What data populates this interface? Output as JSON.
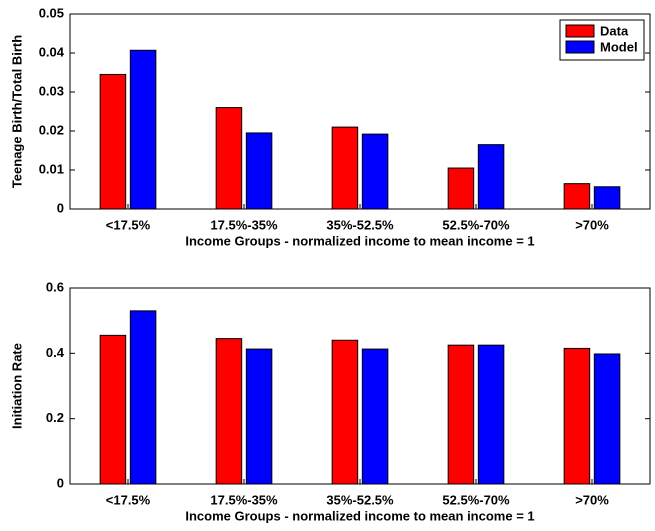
{
  "chart_data": [
    {
      "type": "bar",
      "xlabel": "Income Groups - normalized income to mean income = 1",
      "ylabel": "Teenage Birth/Total Birth",
      "categories": [
        "<17.5%",
        "17.5%-35%",
        "35%-52.5%",
        "52.5%-70%",
        ">70%"
      ],
      "series": [
        {
          "name": "Data",
          "color": "#ff0000",
          "values": [
            0.0345,
            0.026,
            0.021,
            0.0105,
            0.0065
          ]
        },
        {
          "name": "Model",
          "color": "#0000ff",
          "values": [
            0.0407,
            0.0195,
            0.0192,
            0.0165,
            0.0057
          ]
        }
      ],
      "ylim": [
        0,
        0.05
      ],
      "yticks": [
        0,
        0.01,
        0.02,
        0.03,
        0.04,
        0.05
      ],
      "legend": "northeast"
    },
    {
      "type": "bar",
      "xlabel": "Income Groups - normalized income to mean income = 1",
      "ylabel": "Initiation Rate",
      "categories": [
        "<17.5%",
        "17.5%-35%",
        "35%-52.5%",
        "52.5%-70%",
        ">70%"
      ],
      "series": [
        {
          "color": "#ff0000",
          "values": [
            0.455,
            0.445,
            0.44,
            0.425,
            0.415
          ]
        },
        {
          "color": "#0000ff",
          "values": [
            0.53,
            0.413,
            0.413,
            0.425,
            0.398
          ]
        }
      ],
      "ylim": [
        0,
        0.6
      ],
      "yticks": [
        0,
        0.2,
        0.4,
        0.6
      ]
    }
  ]
}
